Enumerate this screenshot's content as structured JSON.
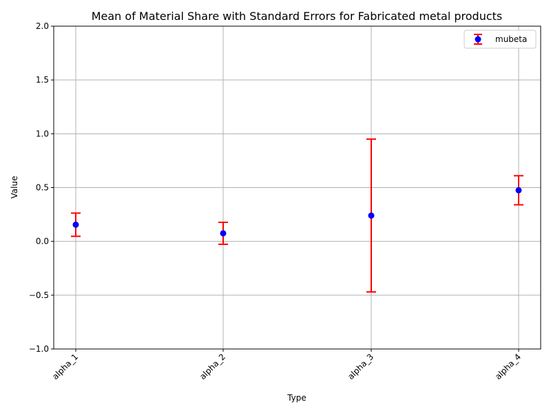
{
  "chart_data": {
    "type": "scatter",
    "title": "Mean of Material Share with Standard Errors for Fabricated metal products",
    "xlabel": "Type",
    "ylabel": "Value",
    "categories": [
      "alpha_1",
      "alpha_2",
      "alpha_3",
      "alpha_4"
    ],
    "series": [
      {
        "name": "mubeta",
        "values": [
          0.155,
          0.075,
          0.24,
          0.475
        ],
        "errors": [
          0.108,
          0.102,
          0.71,
          0.135
        ]
      }
    ],
    "ylim": [
      -1.0,
      2.0
    ],
    "yticks": [
      -1.0,
      -0.5,
      0.0,
      0.5,
      1.0,
      1.5,
      2.0
    ],
    "ytick_labels": [
      "−1.0",
      "−0.5",
      "0.0",
      "0.5",
      "1.0",
      "1.5",
      "2.0"
    ],
    "grid": true,
    "legend": "top-right",
    "colors": {
      "marker": "#0000ff",
      "errorbar": "#ff0000",
      "grid": "#b0b0b0"
    }
  }
}
